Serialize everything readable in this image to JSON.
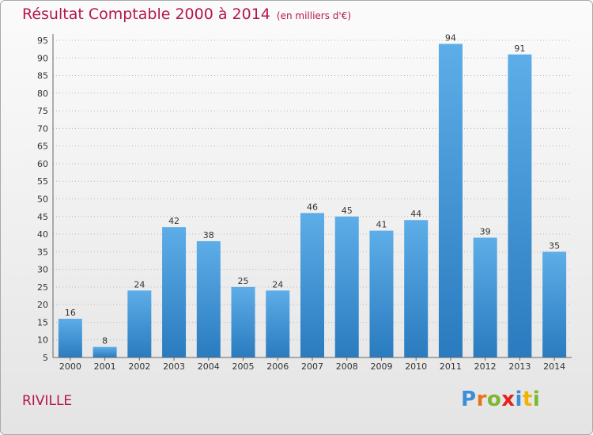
{
  "chart_data": {
    "type": "bar",
    "title": "Résultat Comptable 2000 à 2014",
    "subtitle": "(en milliers d'€)",
    "categories": [
      "2000",
      "2001",
      "2002",
      "2003",
      "2004",
      "2005",
      "2006",
      "2007",
      "2008",
      "2009",
      "2010",
      "2011",
      "2012",
      "2013",
      "2014"
    ],
    "values": [
      16,
      8,
      24,
      42,
      38,
      25,
      24,
      46,
      45,
      41,
      44,
      94,
      39,
      91,
      35
    ],
    "ylim": [
      5,
      95
    ],
    "yticks": [
      5,
      10,
      15,
      20,
      25,
      30,
      35,
      40,
      45,
      50,
      55,
      60,
      65,
      70,
      75,
      80,
      85,
      90,
      95
    ],
    "grid": "horizontal-dotted",
    "xlabel": "",
    "ylabel": ""
  },
  "footer": {
    "commune": "RIVILLE",
    "logo_letters": [
      {
        "char": "P",
        "color": "#3a8fd6"
      },
      {
        "char": "r",
        "color": "#e8731a"
      },
      {
        "char": "o",
        "color": "#7cb82f"
      },
      {
        "char": "x",
        "color": "#e2231a"
      },
      {
        "char": "i",
        "color": "#3a8fd6"
      },
      {
        "char": "t",
        "color": "#f0b400"
      },
      {
        "char": "i",
        "color": "#7cb82f"
      }
    ]
  },
  "colors": {
    "title": "#b5174b",
    "bar_light": "#5dade8",
    "bar_dark": "#2a7bbf",
    "axis_text": "#333333"
  }
}
